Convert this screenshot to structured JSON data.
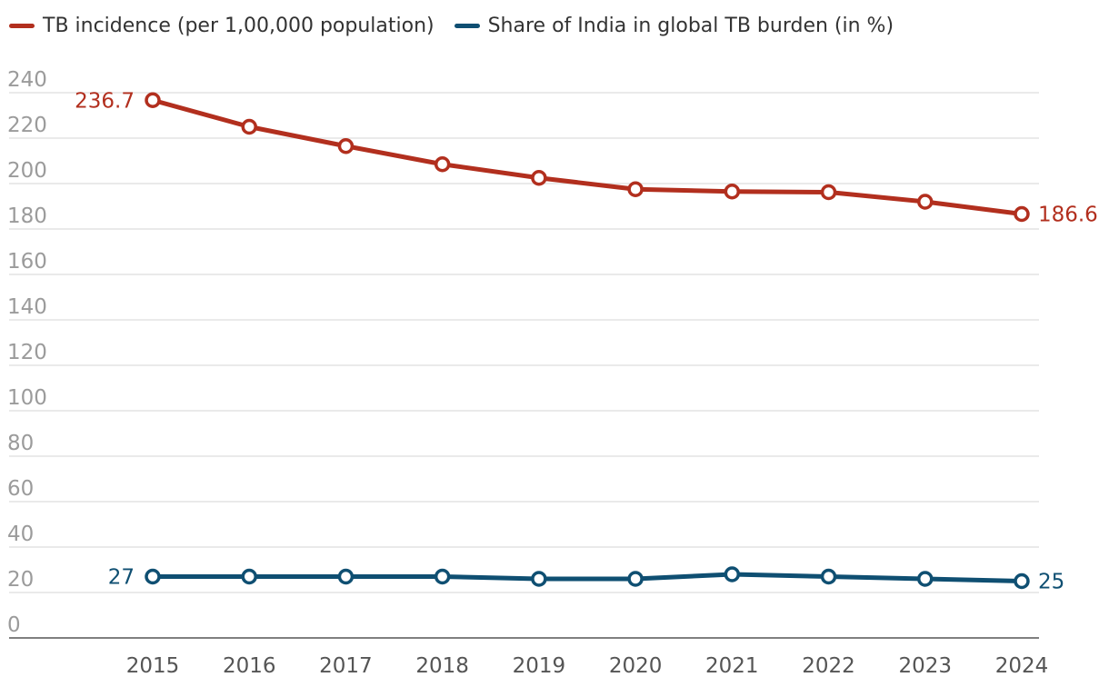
{
  "chart_data": {
    "type": "line",
    "title": "",
    "xlabel": "",
    "ylabel": "",
    "ylim": [
      0,
      240
    ],
    "yticks": [
      0,
      20,
      40,
      60,
      80,
      100,
      120,
      140,
      160,
      180,
      200,
      220,
      240
    ],
    "categories": [
      "2015",
      "2016",
      "2017",
      "2018",
      "2019",
      "2020",
      "2021",
      "2022",
      "2023",
      "2024"
    ],
    "legend_position": "top-left",
    "grid": true,
    "series": [
      {
        "name": "TB incidence (per 1,00,000 population)",
        "color": "#b22f1e",
        "values": [
          236.7,
          225,
          216.5,
          208.5,
          202.5,
          197.5,
          196.5,
          196.2,
          192,
          186.6
        ],
        "labels": {
          "first": "236.7",
          "last": "186.6"
        }
      },
      {
        "name": "Share of India in global TB burden (in %)",
        "color": "#0f4f72",
        "values": [
          27,
          27,
          27,
          27,
          26,
          26,
          28,
          27,
          26,
          25
        ],
        "labels": {
          "first": "27",
          "last": "25"
        }
      }
    ]
  }
}
